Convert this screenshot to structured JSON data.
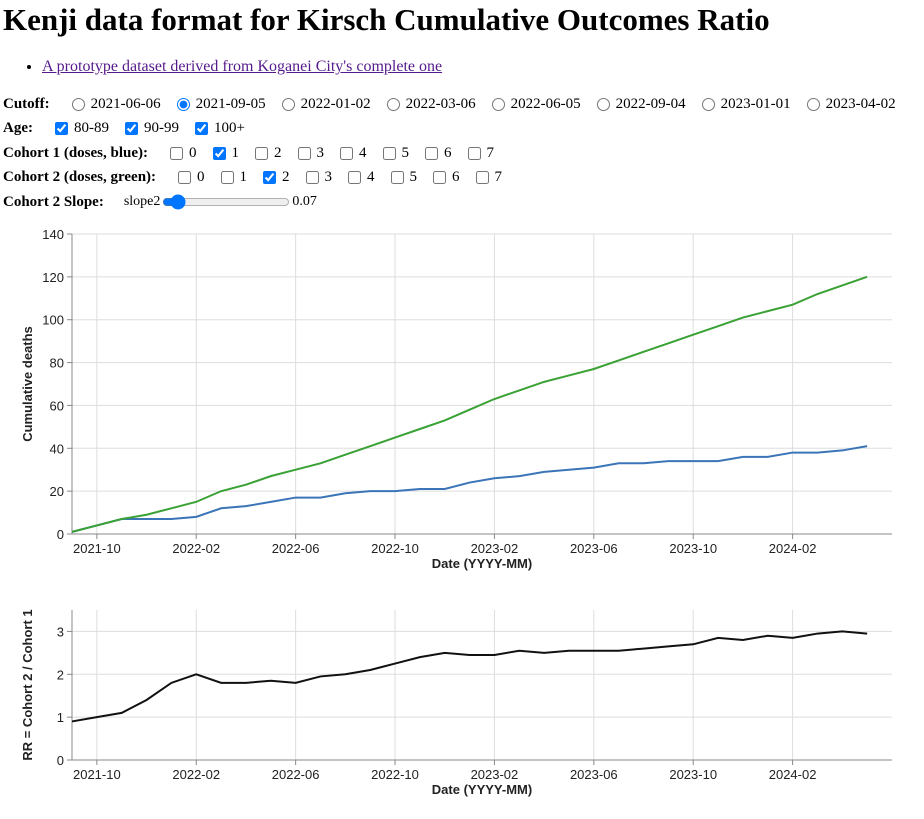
{
  "header": {
    "title": "Kenji data format for Kirsch Cumulative Outcomes Ratio"
  },
  "links": [
    "A prototype dataset derived from Koganei City's complete one"
  ],
  "controls": {
    "cutoff": {
      "label": "Cutoff:",
      "options": [
        {
          "label": "2021-06-06",
          "checked": false
        },
        {
          "label": "2021-09-05",
          "checked": true
        },
        {
          "label": "2022-01-02",
          "checked": false
        },
        {
          "label": "2022-03-06",
          "checked": false
        },
        {
          "label": "2022-06-05",
          "checked": false
        },
        {
          "label": "2022-09-04",
          "checked": false
        },
        {
          "label": "2023-01-01",
          "checked": false
        },
        {
          "label": "2023-04-02",
          "checked": false
        }
      ]
    },
    "age": {
      "label": "Age:",
      "options": [
        {
          "label": "80-89",
          "checked": true
        },
        {
          "label": "90-99",
          "checked": true
        },
        {
          "label": "100+",
          "checked": true
        }
      ]
    },
    "cohort1": {
      "label": "Cohort 1 (doses, blue):",
      "options": [
        {
          "label": "0",
          "checked": false
        },
        {
          "label": "1",
          "checked": true
        },
        {
          "label": "2",
          "checked": false
        },
        {
          "label": "3",
          "checked": false
        },
        {
          "label": "4",
          "checked": false
        },
        {
          "label": "5",
          "checked": false
        },
        {
          "label": "6",
          "checked": false
        },
        {
          "label": "7",
          "checked": false
        }
      ]
    },
    "cohort2": {
      "label": "Cohort 2 (doses, green):",
      "options": [
        {
          "label": "0",
          "checked": false
        },
        {
          "label": "1",
          "checked": false
        },
        {
          "label": "2",
          "checked": true
        },
        {
          "label": "3",
          "checked": false
        },
        {
          "label": "4",
          "checked": false
        },
        {
          "label": "5",
          "checked": false
        },
        {
          "label": "6",
          "checked": false
        },
        {
          "label": "7",
          "checked": false
        }
      ]
    },
    "slope": {
      "label": "Cohort 2 Slope:",
      "name": "slope2",
      "value": 0.07
    }
  },
  "chart_data": [
    {
      "type": "line",
      "x_label": "Date (YYYY-MM)",
      "y_label": "Cumulative deaths",
      "x": [
        "2021-09",
        "2021-10",
        "2021-11",
        "2021-12",
        "2022-01",
        "2022-02",
        "2022-03",
        "2022-04",
        "2022-05",
        "2022-06",
        "2022-07",
        "2022-08",
        "2022-09",
        "2022-10",
        "2022-11",
        "2022-12",
        "2023-01",
        "2023-02",
        "2023-03",
        "2023-04",
        "2023-05",
        "2023-06",
        "2023-07",
        "2023-08",
        "2023-09",
        "2023-10",
        "2023-11",
        "2023-12",
        "2024-01",
        "2024-02",
        "2024-03",
        "2024-04",
        "2024-05"
      ],
      "series": [
        {
          "color": "#3b75b8",
          "values": [
            1,
            4,
            7,
            7,
            7,
            8,
            12,
            13,
            15,
            17,
            17,
            19,
            20,
            20,
            21,
            21,
            24,
            26,
            27,
            29,
            30,
            31,
            33,
            33,
            34,
            34,
            34,
            36,
            36,
            38,
            38,
            39,
            41
          ]
        },
        {
          "color": "#3aa135",
          "values": [
            1,
            4,
            7,
            9,
            12,
            15,
            20,
            23,
            27,
            30,
            33,
            37,
            41,
            45,
            49,
            53,
            58,
            63,
            67,
            71,
            74,
            77,
            81,
            85,
            89,
            93,
            97,
            101,
            104,
            107,
            112,
            116,
            120
          ]
        }
      ],
      "xlim": [
        "2021-09",
        "2024-06"
      ],
      "xticks": [
        "2021-10",
        "2022-02",
        "2022-06",
        "2022-10",
        "2023-02",
        "2023-06",
        "2023-10",
        "2024-02"
      ],
      "ylim": [
        0,
        140
      ],
      "yticks": [
        0,
        20,
        40,
        60,
        80,
        100,
        120,
        140
      ],
      "grid": true
    },
    {
      "type": "line",
      "x_label": "Date (YYYY-MM)",
      "y_label": "RR = Cohort 2 / Cohort 1",
      "x": [
        "2021-09",
        "2021-10",
        "2021-11",
        "2021-12",
        "2022-01",
        "2022-02",
        "2022-03",
        "2022-04",
        "2022-05",
        "2022-06",
        "2022-07",
        "2022-08",
        "2022-09",
        "2022-10",
        "2022-11",
        "2022-12",
        "2023-01",
        "2023-02",
        "2023-03",
        "2023-04",
        "2023-05",
        "2023-06",
        "2023-07",
        "2023-08",
        "2023-09",
        "2023-10",
        "2023-11",
        "2023-12",
        "2024-01",
        "2024-02",
        "2024-03",
        "2024-04",
        "2024-05"
      ],
      "series": [
        {
          "color": "#111111",
          "values": [
            0.9,
            1.0,
            1.1,
            1.4,
            1.8,
            2.0,
            1.8,
            1.8,
            1.85,
            1.8,
            1.95,
            2.0,
            2.1,
            2.25,
            2.4,
            2.5,
            2.45,
            2.45,
            2.55,
            2.5,
            2.55,
            2.55,
            2.55,
            2.6,
            2.65,
            2.7,
            2.85,
            2.8,
            2.9,
            2.85,
            2.95,
            3.0,
            2.95
          ]
        }
      ],
      "xlim": [
        "2021-09",
        "2024-06"
      ],
      "xticks": [
        "2021-10",
        "2022-02",
        "2022-06",
        "2022-10",
        "2023-02",
        "2023-06",
        "2023-10",
        "2024-02"
      ],
      "ylim": [
        0,
        3.5
      ],
      "yticks": [
        0,
        1,
        2,
        3
      ],
      "grid": true
    }
  ]
}
